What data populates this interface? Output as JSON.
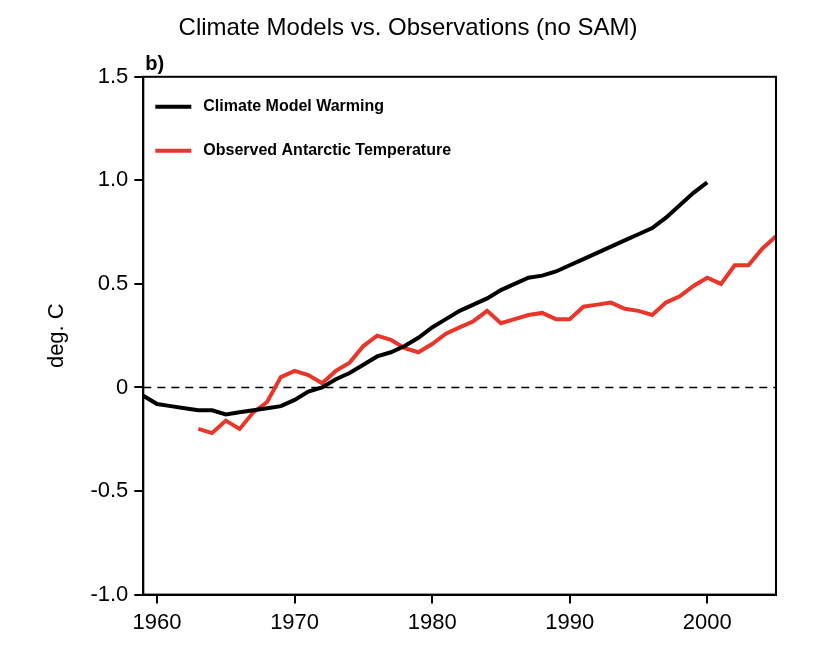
{
  "chart_data": {
    "type": "line",
    "title": "Climate Models vs. Observations (no SAM)",
    "panel_label": "b)",
    "y_label": "deg. C",
    "x": [
      1959,
      1960,
      1961,
      1962,
      1963,
      1964,
      1965,
      1966,
      1967,
      1968,
      1969,
      1970,
      1971,
      1972,
      1973,
      1974,
      1975,
      1976,
      1977,
      1978,
      1979,
      1980,
      1981,
      1982,
      1983,
      1984,
      1985,
      1986,
      1987,
      1988,
      1989,
      1990,
      1991,
      1992,
      1993,
      1994,
      1995,
      1996,
      1997,
      1998,
      1999,
      2000,
      2001,
      2002,
      2003,
      2004,
      2005
    ],
    "series": [
      {
        "name": "Climate Model Warming",
        "color": "#000000",
        "line_style": "solid",
        "values": [
          -0.04,
          -0.08,
          -0.09,
          -0.1,
          -0.11,
          -0.11,
          -0.13,
          -0.12,
          -0.11,
          -0.1,
          -0.09,
          -0.06,
          -0.02,
          0.0,
          0.04,
          0.07,
          0.11,
          0.15,
          0.17,
          0.2,
          0.24,
          0.29,
          0.33,
          0.37,
          0.4,
          0.43,
          0.47,
          0.5,
          0.53,
          0.54,
          0.56,
          0.59,
          0.62,
          0.65,
          0.68,
          0.71,
          0.74,
          0.77,
          0.82,
          0.88,
          0.94,
          0.99,
          null,
          null,
          null,
          null,
          null
        ]
      },
      {
        "name": "Observed Antarctic Temperature",
        "color": "#e8362a",
        "line_style": "solid",
        "values": [
          null,
          null,
          null,
          null,
          -0.2,
          -0.22,
          -0.16,
          -0.2,
          -0.12,
          -0.07,
          0.05,
          0.08,
          0.06,
          0.02,
          0.08,
          0.12,
          0.2,
          0.25,
          0.23,
          0.19,
          0.17,
          0.21,
          0.26,
          0.29,
          0.32,
          0.37,
          0.31,
          0.33,
          0.35,
          0.36,
          0.33,
          0.33,
          0.39,
          0.4,
          0.41,
          0.38,
          0.37,
          0.35,
          0.41,
          0.44,
          0.49,
          0.53,
          0.5,
          0.59,
          0.59,
          0.67,
          0.73
        ]
      }
    ],
    "reference_line": {
      "y": 0,
      "line_style": "dashed",
      "color": "#000000"
    },
    "xlim": [
      1959,
      2005
    ],
    "xticks": [
      1960,
      1970,
      1980,
      1990,
      2000
    ],
    "ylim": [
      -1,
      1.5
    ],
    "yticks": [
      {
        "value": -1,
        "label": "-1.0"
      },
      -0.5,
      0,
      0.5,
      {
        "value": 1,
        "label": "1.0"
      },
      1.5
    ],
    "grid": false,
    "legend": "upper left"
  }
}
